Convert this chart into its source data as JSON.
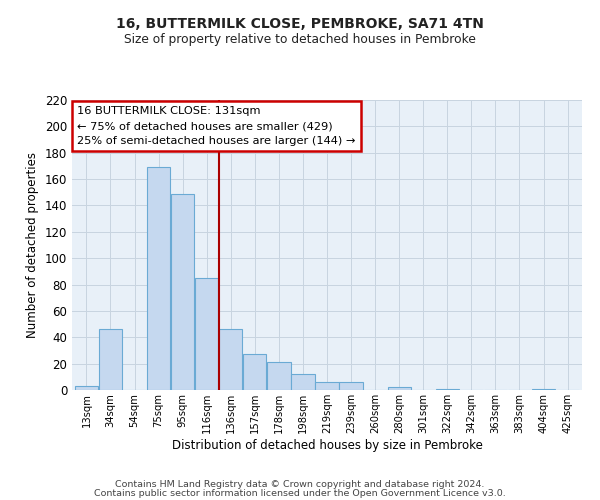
{
  "title": "16, BUTTERMILK CLOSE, PEMBROKE, SA71 4TN",
  "subtitle": "Size of property relative to detached houses in Pembroke",
  "xlabel": "Distribution of detached houses by size in Pembroke",
  "ylabel": "Number of detached properties",
  "categories": [
    "13sqm",
    "34sqm",
    "54sqm",
    "75sqm",
    "95sqm",
    "116sqm",
    "136sqm",
    "157sqm",
    "178sqm",
    "198sqm",
    "219sqm",
    "239sqm",
    "260sqm",
    "280sqm",
    "301sqm",
    "322sqm",
    "342sqm",
    "363sqm",
    "383sqm",
    "404sqm",
    "425sqm"
  ],
  "values": [
    3,
    46,
    0,
    169,
    149,
    85,
    46,
    27,
    21,
    12,
    6,
    6,
    0,
    2,
    0,
    1,
    0,
    0,
    0,
    1,
    0
  ],
  "bar_color": "#c5d8ef",
  "bar_edge_color": "#6aaad4",
  "vline_color": "#aa0000",
  "vline_x_index": 5.5,
  "annotation_title": "16 BUTTERMILK CLOSE: 131sqm",
  "annotation_line1": "← 75% of detached houses are smaller (429)",
  "annotation_line2": "25% of semi-detached houses are larger (144) →",
  "annotation_box_color": "#ffffff",
  "annotation_box_edge": "#cc0000",
  "footer1": "Contains HM Land Registry data © Crown copyright and database right 2024.",
  "footer2": "Contains public sector information licensed under the Open Government Licence v3.0.",
  "ylim": [
    0,
    220
  ],
  "yticks": [
    0,
    20,
    40,
    60,
    80,
    100,
    120,
    140,
    160,
    180,
    200,
    220
  ],
  "background_color": "#ffffff",
  "plot_bg_color": "#e8f0f8",
  "grid_color": "#c8d4e0"
}
